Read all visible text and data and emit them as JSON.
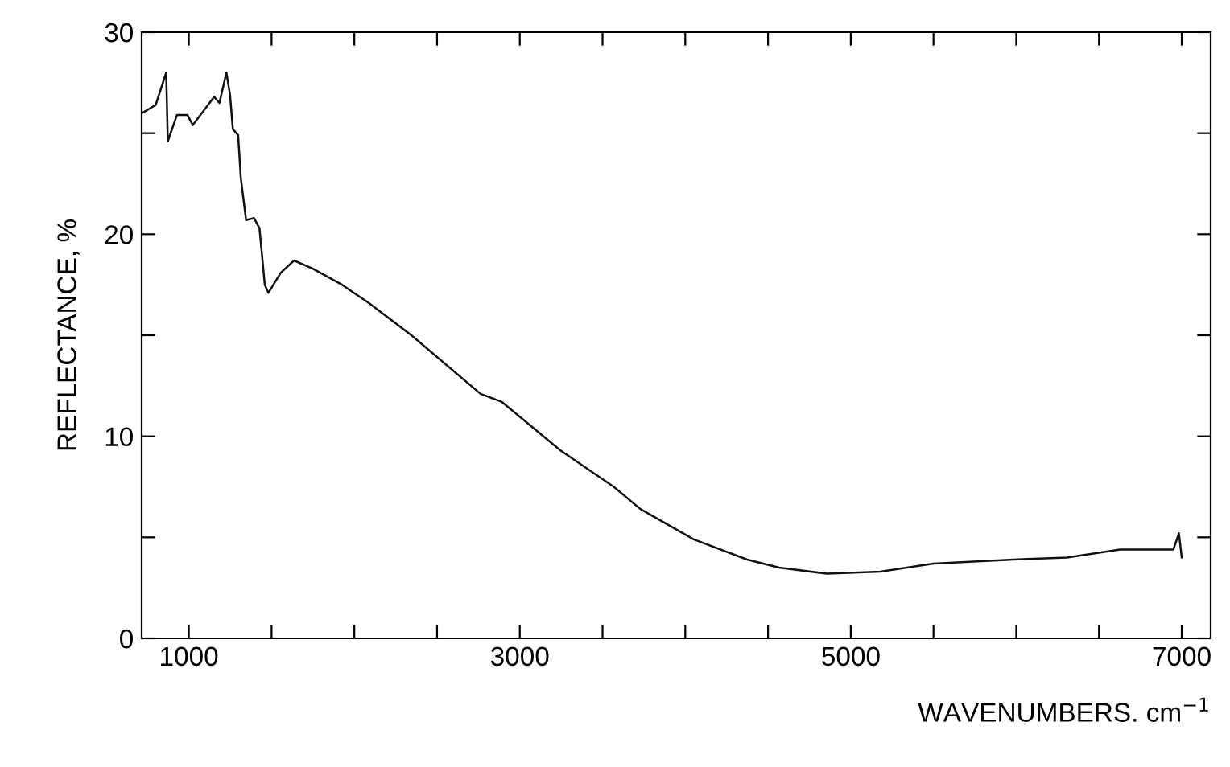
{
  "chart_data": {
    "type": "line",
    "xlabel": "WAVENUMBERS. cm$^{−1}$",
    "ylabel": "REFLECTANCE, %",
    "xlim": [
      715,
      7175
    ],
    "ylim": [
      0,
      30
    ],
    "xticks": [
      {
        "value": 1000,
        "label": "1000"
      },
      {
        "value": 1500,
        "label": null
      },
      {
        "value": 2000,
        "label": null
      },
      {
        "value": 2500,
        "label": null
      },
      {
        "value": 3000,
        "label": "3000"
      },
      {
        "value": 3500,
        "label": null
      },
      {
        "value": 4000,
        "label": null
      },
      {
        "value": 4500,
        "label": null
      },
      {
        "value": 5000,
        "label": "5000"
      },
      {
        "value": 5500,
        "label": null
      },
      {
        "value": 6000,
        "label": null
      },
      {
        "value": 6500,
        "label": null
      },
      {
        "value": 7000,
        "label": "7000"
      }
    ],
    "yticks": [
      0,
      {
        "value": 5,
        "label": null
      },
      10,
      {
        "value": 15,
        "label": null
      },
      20,
      {
        "value": 25,
        "label": null
      },
      30
    ],
    "grid": false,
    "legend": false,
    "marker": "none",
    "line_style": "solid",
    "series": [
      {
        "color": "#111111",
        "x": [
          718,
          800,
          863,
          873,
          928,
          992,
          1024,
          1153,
          1185,
          1227,
          1249,
          1266,
          1298,
          1314,
          1346,
          1394,
          1427,
          1459,
          1481,
          1556,
          1636,
          1749,
          1926,
          2087,
          2345,
          2763,
          2892,
          3246,
          3568,
          3729,
          4051,
          4374,
          4567,
          4857,
          5179,
          5500,
          5983,
          6306,
          6628,
          6950,
          6983,
          7000
        ],
        "values": [
          26.0,
          26.4,
          28.0,
          24.6,
          25.9,
          25.9,
          25.4,
          26.8,
          26.5,
          28.0,
          26.9,
          25.2,
          24.9,
          22.8,
          20.7,
          20.8,
          20.3,
          17.5,
          17.1,
          18.1,
          18.7,
          18.3,
          17.5,
          16.6,
          15.0,
          12.1,
          11.7,
          9.3,
          7.5,
          6.4,
          4.9,
          3.9,
          3.5,
          3.2,
          3.3,
          3.7,
          3.9,
          4.0,
          4.4,
          4.4,
          5.2,
          4.0
        ]
      }
    ]
  }
}
